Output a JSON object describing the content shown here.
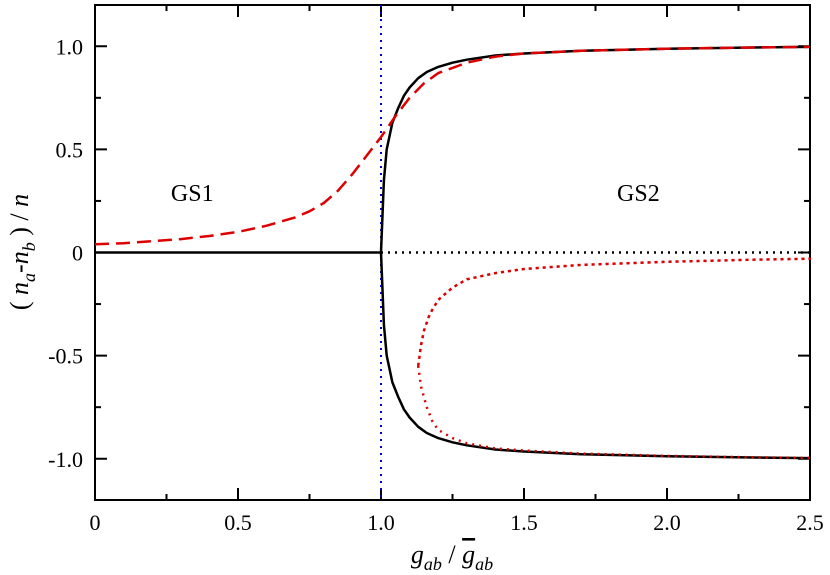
{
  "chart_data": {
    "type": "line",
    "title": "",
    "xlabel": "g_ab / ḡ_ab",
    "ylabel": "( n_a - n_b ) / n",
    "xlim": [
      0,
      2.5
    ],
    "ylim": [
      -1.2,
      1.2
    ],
    "grid": false,
    "xticks": [
      0,
      0.5,
      1.0,
      1.5,
      2.0,
      2.5
    ],
    "xtick_labels": [
      "0",
      "0.5",
      "1.0",
      "1.5",
      "2.0",
      "2.5"
    ],
    "yticks": [
      -1.0,
      -0.5,
      0,
      0.5,
      1.0
    ],
    "ytick_labels": [
      "-1.0",
      "-0.5",
      "0",
      "0.5",
      "1.0"
    ],
    "xlabel_parts": {
      "g": "g",
      "ab_sub": "ab",
      "slash": " / ",
      "gbar": "g",
      "ab_sub2": "ab"
    },
    "ylabel_parts": {
      "open": "( ",
      "n1": "n",
      "a_sub": "a",
      "minus": "-n",
      "b_sub": "b",
      "close": " ) / ",
      "n2": "n"
    },
    "annotations": [
      {
        "text": "GS1",
        "x": 0.34,
        "y": 0.25
      },
      {
        "text": "GS2",
        "x": 1.9,
        "y": 0.25
      }
    ],
    "vlines": [
      {
        "name": "critical-line",
        "x": 1.0,
        "color": "#0000cc",
        "style": "dotted"
      }
    ],
    "series": [
      {
        "name": "solid-black-upper",
        "color": "#000000",
        "style": "solid",
        "x": [
          0,
          0.5,
          1.0,
          1.01,
          1.02,
          1.04,
          1.06,
          1.08,
          1.1,
          1.13,
          1.16,
          1.2,
          1.25,
          1.3,
          1.4,
          1.5,
          1.7,
          2.0,
          2.3,
          2.5
        ],
        "y": [
          0,
          0,
          0,
          0.35,
          0.5,
          0.63,
          0.7,
          0.76,
          0.8,
          0.845,
          0.875,
          0.9,
          0.92,
          0.935,
          0.955,
          0.965,
          0.978,
          0.988,
          0.994,
          0.997
        ]
      },
      {
        "name": "solid-black-lower",
        "color": "#000000",
        "style": "solid",
        "x": [
          1.0,
          1.01,
          1.02,
          1.04,
          1.06,
          1.08,
          1.1,
          1.13,
          1.16,
          1.2,
          1.25,
          1.3,
          1.4,
          1.5,
          1.7,
          2.0,
          2.3,
          2.5
        ],
        "y": [
          0,
          -0.35,
          -0.5,
          -0.63,
          -0.7,
          -0.76,
          -0.8,
          -0.845,
          -0.875,
          -0.9,
          -0.92,
          -0.935,
          -0.955,
          -0.965,
          -0.978,
          -0.988,
          -0.994,
          -0.997
        ]
      },
      {
        "name": "dotted-black-zero",
        "color": "#000000",
        "style": "dotted",
        "x": [
          1.0,
          2.5
        ],
        "y": [
          0,
          0
        ]
      },
      {
        "name": "dashed-red",
        "color": "#dd0000",
        "style": "dashed",
        "x": [
          0,
          0.1,
          0.2,
          0.3,
          0.4,
          0.5,
          0.6,
          0.7,
          0.75,
          0.8,
          0.85,
          0.9,
          0.95,
          1.0,
          1.05,
          1.1,
          1.15,
          1.2,
          1.3,
          1.4,
          1.5,
          1.7,
          2.0,
          2.3,
          2.5
        ],
        "y": [
          0.04,
          0.045,
          0.055,
          0.065,
          0.08,
          0.1,
          0.13,
          0.17,
          0.2,
          0.24,
          0.3,
          0.38,
          0.47,
          0.56,
          0.66,
          0.75,
          0.82,
          0.87,
          0.92,
          0.95,
          0.965,
          0.978,
          0.988,
          0.994,
          0.997
        ]
      },
      {
        "name": "dotted-red",
        "color": "#dd0000",
        "style": "dotted",
        "x": [
          1.13,
          1.14,
          1.15,
          1.17,
          1.2,
          1.25,
          1.3,
          1.4,
          1.5,
          1.7,
          2.0,
          2.3,
          2.5,
          2.3,
          2.0,
          1.7,
          1.5,
          1.4,
          1.3,
          1.25,
          1.2,
          1.17,
          1.15,
          1.14,
          1.13
        ],
        "y": [
          -0.55,
          -0.45,
          -0.38,
          -0.3,
          -0.23,
          -0.17,
          -0.13,
          -0.1,
          -0.08,
          -0.06,
          -0.045,
          -0.035,
          -0.03,
          -0.035,
          -0.045,
          -0.06,
          -0.08,
          -0.1,
          -0.13,
          -0.17,
          -0.23,
          -0.3,
          -0.38,
          -0.45,
          -0.55
        ]
      },
      {
        "name": "dotted-red-lower",
        "color": "#dd0000",
        "style": "dotted",
        "x": [
          1.13,
          1.14,
          1.16,
          1.18,
          1.2,
          1.25,
          1.3,
          1.4,
          1.5,
          1.7,
          2.0,
          2.3,
          2.5
        ],
        "y": [
          -0.55,
          -0.65,
          -0.75,
          -0.82,
          -0.86,
          -0.9,
          -0.925,
          -0.95,
          -0.96,
          -0.975,
          -0.986,
          -0.993,
          -0.996
        ]
      }
    ]
  }
}
